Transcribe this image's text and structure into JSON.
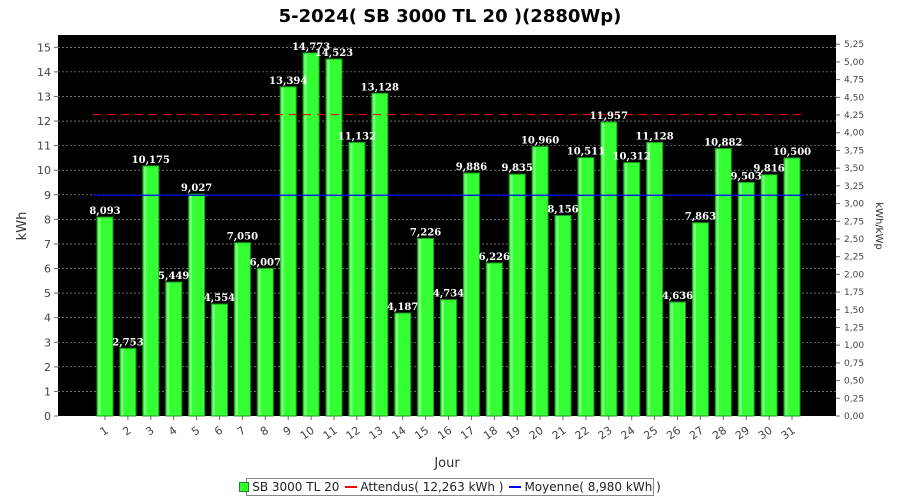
{
  "chart_data": {
    "type": "bar",
    "title": "5-2024( SB 3000 TL 20 )(2880Wp)",
    "xlabel": "Jour",
    "ylabel": "kWh",
    "y2label": "kWh/kWp",
    "ylim": [
      0,
      15.5
    ],
    "y2lim": [
      0,
      5.38
    ],
    "yticks": [
      "0",
      "1",
      "2",
      "3",
      "4",
      "5",
      "6",
      "7",
      "8",
      "9",
      "10",
      "11",
      "12",
      "13",
      "14",
      "15"
    ],
    "y2ticks": [
      "0,00",
      "0,25",
      "0,50",
      "0,75",
      "1,00",
      "1,25",
      "1,50",
      "1,75",
      "2,00",
      "2,25",
      "2,50",
      "2,75",
      "3,00",
      "3,25",
      "3,50",
      "3,75",
      "4,00",
      "4,25",
      "4,50",
      "4,75",
      "5,00",
      "5,25"
    ],
    "categories": [
      "1",
      "2",
      "3",
      "4",
      "5",
      "6",
      "7",
      "8",
      "9",
      "10",
      "11",
      "12",
      "13",
      "14",
      "15",
      "16",
      "17",
      "18",
      "19",
      "20",
      "21",
      "22",
      "23",
      "24",
      "25",
      "26",
      "27",
      "28",
      "29",
      "30",
      "31"
    ],
    "series": [
      {
        "name": "SB 3000 TL 20",
        "values": [
          8.093,
          2.753,
          10.175,
          5.449,
          9.027,
          4.554,
          7.05,
          6.007,
          13.394,
          14.773,
          14.523,
          11.132,
          13.128,
          4.187,
          7.226,
          4.734,
          9.886,
          6.226,
          9.835,
          10.96,
          8.156,
          10.511,
          11.957,
          10.312,
          11.128,
          4.636,
          7.863,
          10.882,
          9.503,
          9.816,
          10.5
        ],
        "labels": [
          "8,093",
          "2,753",
          "10,175",
          "5,449",
          "9,027",
          "4,554",
          "7,050",
          "6,007",
          "13,394",
          "14,773",
          "14,523",
          "11,132",
          "13,128",
          "4,187",
          "7,226",
          "4,734",
          "9,886",
          "6,226",
          "9,835",
          "10,960",
          "8,156",
          "10,511",
          "11,957",
          "10,312",
          "11,128",
          "4,636",
          "7,863",
          "10,882",
          "9,503",
          "9,816",
          "10,500"
        ],
        "color": "#33ff33"
      }
    ],
    "reference_lines": [
      {
        "name": "Attendus( 12,263 kWh )",
        "value": 12.263,
        "color": "#ff0000",
        "style": "dashed"
      },
      {
        "name": "Moyenne( 8,980 kWh )",
        "value": 8.98,
        "color": "#0000ff",
        "style": "solid"
      }
    ],
    "plot_background": "#000000",
    "grid": true,
    "legend_position": "bottom"
  }
}
